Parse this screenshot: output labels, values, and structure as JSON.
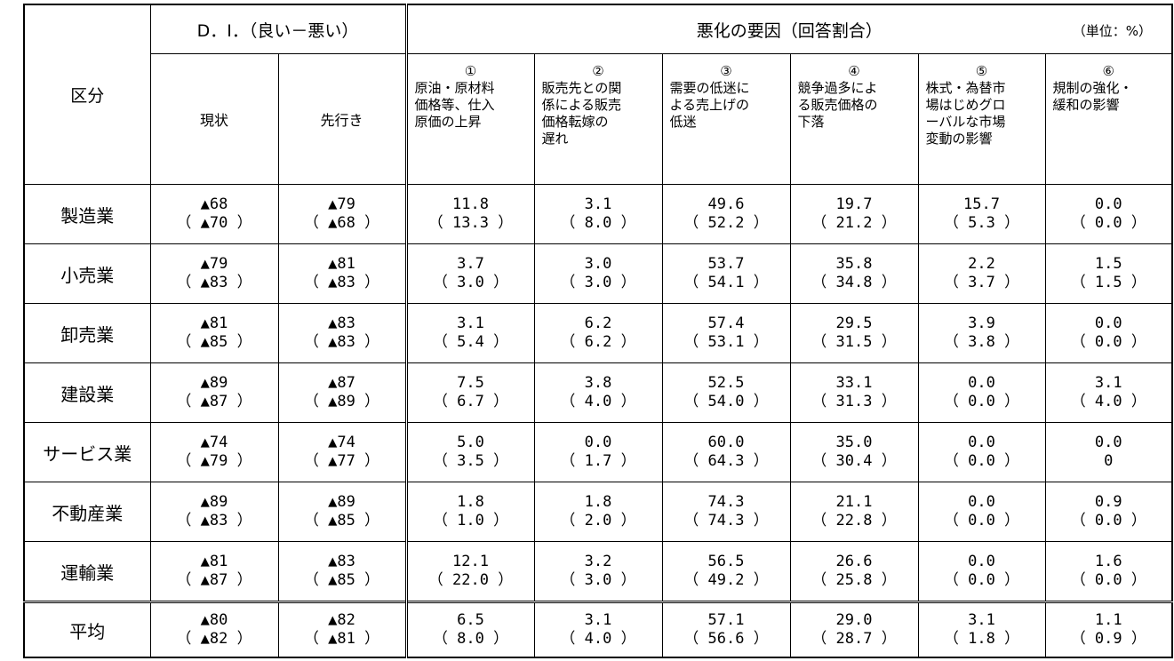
{
  "header": {
    "area_label": "区分",
    "di_label": "D．I．（良い－悪い）",
    "factor_title": "悪化の要因（回答割合）",
    "unit": "（単位：%）",
    "current_label": "現状",
    "outlook_label": "先行き",
    "factors": [
      {
        "num": "①",
        "text": "原油・原材料\n価格等、仕入\n原価の上昇"
      },
      {
        "num": "②",
        "text": "販売先との関\n係による販売\n価格転嫁の\n遅れ"
      },
      {
        "num": "③",
        "text": "需要の低迷に\nよる売上げの\n低迷"
      },
      {
        "num": "④",
        "text": "競争過多によ\nる販売価格の\n下落"
      },
      {
        "num": "⑤",
        "text": "株式・為替市\n場はじめグロ\nーバルな市場\n変動の影響"
      },
      {
        "num": "⑥",
        "text": "規制の強化・\n緩和の影響"
      }
    ]
  },
  "rows": [
    {
      "name": "製造業",
      "cells": [
        [
          "▲68",
          "（ ▲70 ）"
        ],
        [
          "▲79",
          "（ ▲68 ）"
        ],
        [
          "11.8",
          "（ 13.3 ）"
        ],
        [
          "3.1",
          "（ 8.0 ）"
        ],
        [
          "49.6",
          "（ 52.2 ）"
        ],
        [
          "19.7",
          "（ 21.2 ）"
        ],
        [
          "15.7",
          "（ 5.3 ）"
        ],
        [
          "0.0",
          "（ 0.0 ）"
        ]
      ]
    },
    {
      "name": "小売業",
      "cells": [
        [
          "▲79",
          "（ ▲83 ）"
        ],
        [
          "▲81",
          "（ ▲83 ）"
        ],
        [
          "3.7",
          "（ 3.0 ）"
        ],
        [
          "3.0",
          "（ 3.0 ）"
        ],
        [
          "53.7",
          "（ 54.1 ）"
        ],
        [
          "35.8",
          "（ 34.8 ）"
        ],
        [
          "2.2",
          "（ 3.7 ）"
        ],
        [
          "1.5",
          "（ 1.5 ）"
        ]
      ]
    },
    {
      "name": "卸売業",
      "cells": [
        [
          "▲81",
          "（ ▲85 ）"
        ],
        [
          "▲83",
          "（ ▲83 ）"
        ],
        [
          "3.1",
          "（ 5.4 ）"
        ],
        [
          "6.2",
          "（ 6.2 ）"
        ],
        [
          "57.4",
          "（ 53.1 ）"
        ],
        [
          "29.5",
          "（ 31.5 ）"
        ],
        [
          "3.9",
          "（ 3.8 ）"
        ],
        [
          "0.0",
          "（ 0.0 ）"
        ]
      ]
    },
    {
      "name": "建設業",
      "cells": [
        [
          "▲89",
          "（ ▲87 ）"
        ],
        [
          "▲87",
          "（ ▲89 ）"
        ],
        [
          "7.5",
          "（ 6.7 ）"
        ],
        [
          "3.8",
          "（ 4.0 ）"
        ],
        [
          "52.5",
          "（ 54.0 ）"
        ],
        [
          "33.1",
          "（ 31.3 ）"
        ],
        [
          "0.0",
          "（ 0.0 ）"
        ],
        [
          "3.1",
          "（ 4.0 ）"
        ]
      ]
    },
    {
      "name": "サービス業",
      "cells": [
        [
          "▲74",
          "（ ▲79 ）"
        ],
        [
          "▲74",
          "（ ▲77 ）"
        ],
        [
          "5.0",
          "（ 3.5 ）"
        ],
        [
          "0.0",
          "（ 1.7 ）"
        ],
        [
          "60.0",
          "（ 64.3 ）"
        ],
        [
          "35.0",
          "（ 30.4 ）"
        ],
        [
          "0.0",
          "（ 0.0 ）"
        ],
        [
          "0.0",
          "0"
        ]
      ]
    },
    {
      "name": "不動産業",
      "cells": [
        [
          "▲89",
          "（ ▲83 ）"
        ],
        [
          "▲89",
          "（ ▲85 ）"
        ],
        [
          "1.8",
          "（ 1.0 ）"
        ],
        [
          "1.8",
          "（ 2.0 ）"
        ],
        [
          "74.3",
          "（ 74.3 ）"
        ],
        [
          "21.1",
          "（ 22.8 ）"
        ],
        [
          "0.0",
          "（ 0.0 ）"
        ],
        [
          "0.9",
          "（ 0.0 ）"
        ]
      ]
    },
    {
      "name": "運輸業",
      "cells": [
        [
          "▲81",
          "（ ▲87 ）"
        ],
        [
          "▲83",
          "（ ▲85 ）"
        ],
        [
          "12.1",
          "（ 22.0 ）"
        ],
        [
          "3.2",
          "（ 3.0 ）"
        ],
        [
          "56.5",
          "（ 49.2 ）"
        ],
        [
          "26.6",
          "（ 25.8 ）"
        ],
        [
          "0.0",
          "（ 0.0 ）"
        ],
        [
          "1.6",
          "（ 0.0 ）"
        ]
      ]
    }
  ],
  "average": {
    "name": "平均",
    "cells": [
      [
        "▲80",
        "（ ▲82 ）"
      ],
      [
        "▲82",
        "（ ▲81 ）"
      ],
      [
        "6.5",
        "（ 8.0 ）"
      ],
      [
        "3.1",
        "（ 4.0 ）"
      ],
      [
        "57.1",
        "（ 56.6 ）"
      ],
      [
        "29.0",
        "（ 28.7 ）"
      ],
      [
        "3.1",
        "（ 1.8 ）"
      ],
      [
        "1.1",
        "（ 0.9 ）"
      ]
    ]
  }
}
